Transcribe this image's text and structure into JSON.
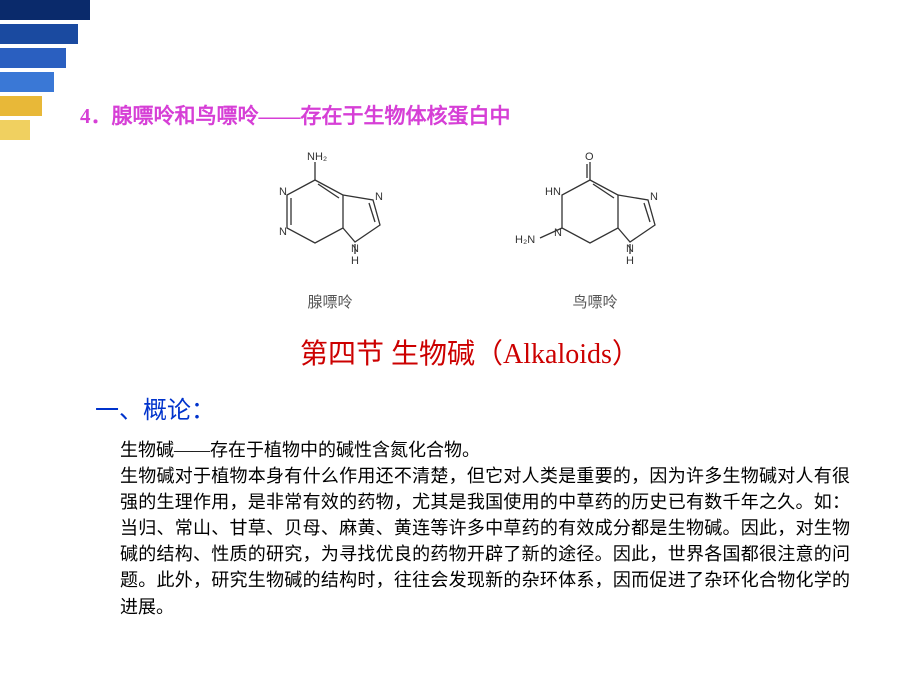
{
  "decoration": {
    "bars": [
      {
        "color": "#0a2a6b",
        "width": 90
      },
      {
        "color": "#1a4aa0",
        "width": 78
      },
      {
        "color": "#2a5fc0",
        "width": 66
      },
      {
        "color": "#3a78d6",
        "width": 54
      },
      {
        "color": "#e8b838",
        "width": 42
      },
      {
        "color": "#f0d060",
        "width": 30
      }
    ]
  },
  "heading4": "4．腺嘌呤和鸟嘌呤——存在于生物体核蛋白中",
  "structures": {
    "left": {
      "label": "腺嘌呤",
      "svg": {
        "atoms": {
          "nh2": "NH₂",
          "n1": "N",
          "n3": "N",
          "n7": "N",
          "n9": "N",
          "h9": "H"
        },
        "stroke": "#333333"
      }
    },
    "right": {
      "label": "鸟嘌呤",
      "svg": {
        "atoms": {
          "o": "O",
          "hn1": "HN",
          "n3": "N",
          "h2n": "H₂N",
          "n7": "N",
          "n9": "N",
          "h9": "H"
        },
        "stroke": "#333333"
      }
    }
  },
  "section_title": "第四节  生物碱（Alkaloids）",
  "subsection": "一、概论：",
  "body_line1": "生物碱——存在于植物中的碱性含氮化合物。",
  "body_text": "生物碱对于植物本身有什么作用还不清楚，但它对人类是重要的，因为许多生物碱对人有很强的生理作用，是非常有效的药物，尤其是我国使用的中草药的历史已有数千年之久。如：当归、常山、甘草、贝母、麻黄、黄连等许多中草药的有效成分都是生物碱。因此，对生物碱的结构、性质的研究，为寻找优良的药物开辟了新的途径。因此，世界各国都很注意的问题。此外，研究生物碱的结构时，往往会发现新的杂环体系，因而促进了杂环化合物化学的进展。"
}
